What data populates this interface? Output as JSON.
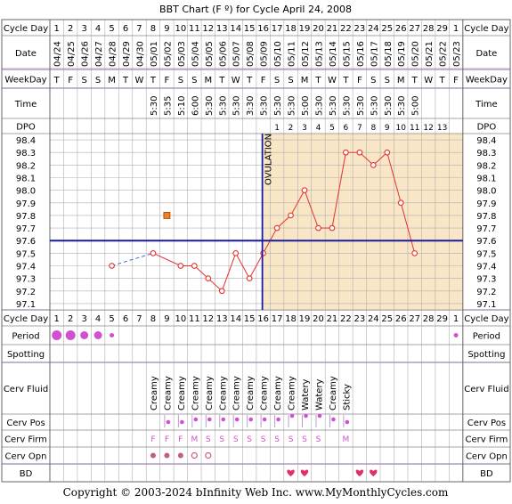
{
  "title": "BBT Chart (F º) for Cycle April 24, 2008",
  "copyright": "Copyright © 2003-2024 bInfinity Web Inc.    www.MyMonthlyCycles.com",
  "row_labels": {
    "cycle_day": "Cycle Day",
    "date": "Date",
    "weekday": "WeekDay",
    "time": "Time",
    "dpo": "DPO",
    "period": "Period",
    "spotting": "Spotting",
    "cerv_fluid": "Cerv Fluid",
    "cerv_pos": "Cerv Pos",
    "cerv_firm": "Cerv Firm",
    "cerv_opn": "Cerv Opn",
    "bd": "BD"
  },
  "ovulation_label": "OVULATION",
  "colors": {
    "background_luteal": "#f8e6c6",
    "grid": "#b0b0b0",
    "temp_line": "#e83030",
    "coverline": "#1a1aa0",
    "ovulation_line": "#1a1aa0",
    "dot_purple": "#d050d0",
    "heart": "#e0306a",
    "sep_band": "#e6d0ef"
  },
  "days": {
    "cycle_day": [
      "1",
      "2",
      "3",
      "4",
      "5",
      "6",
      "7",
      "8",
      "9",
      "10",
      "11",
      "12",
      "13",
      "14",
      "15",
      "16",
      "17",
      "18",
      "19",
      "20",
      "21",
      "22",
      "23",
      "24",
      "25",
      "26",
      "27",
      "28",
      "29",
      "1"
    ],
    "date": [
      "04/24",
      "04/25",
      "04/26",
      "04/27",
      "04/28",
      "04/29",
      "04/30",
      "05/01",
      "05/02",
      "05/03",
      "05/04",
      "05/05",
      "05/06",
      "05/07",
      "05/08",
      "05/09",
      "05/10",
      "05/11",
      "05/12",
      "05/13",
      "05/14",
      "05/15",
      "05/16",
      "05/17",
      "05/18",
      "05/19",
      "05/20",
      "05/21",
      "05/22",
      "05/23"
    ],
    "weekday": [
      "T",
      "F",
      "S",
      "S",
      "M",
      "T",
      "W",
      "T",
      "F",
      "S",
      "S",
      "M",
      "T",
      "W",
      "T",
      "F",
      "S",
      "S",
      "M",
      "T",
      "W",
      "T",
      "F",
      "S",
      "S",
      "M",
      "T",
      "W",
      "T",
      "F"
    ],
    "time": [
      "",
      "",
      "",
      "",
      "",
      "",
      "",
      "5:30",
      "5:35",
      "5:10",
      "6:00",
      "5:30",
      "5:30",
      "5:30",
      "3:30",
      "5:30",
      "5:30",
      "5:30",
      "5:00",
      "5:30",
      "5:30",
      "5:30",
      "5:30",
      "5:30",
      "5:30",
      "5:30",
      "5:00",
      "",
      "",
      ""
    ],
    "dpo": [
      "",
      "",
      "",
      "",
      "",
      "",
      "",
      "",
      "",
      "",
      "",
      "",
      "",
      "",
      "",
      "",
      "1",
      "2",
      "3",
      "4",
      "5",
      "6",
      "7",
      "8",
      "9",
      "10",
      "11",
      "12",
      "13",
      ""
    ],
    "period": [
      "heavy",
      "heavy",
      "medium",
      "medium",
      "light",
      "",
      "",
      "",
      "",
      "",
      "",
      "",
      "",
      "",
      "",
      "",
      "",
      "",
      "",
      "",
      "",
      "",
      "",
      "",
      "",
      "",
      "",
      "",
      "",
      "light"
    ],
    "cerv_fluid": [
      "",
      "",
      "",
      "",
      "",
      "",
      "",
      "Creamy",
      "Creamy",
      "Creamy",
      "Creamy",
      "Creamy",
      "Creamy",
      "Creamy",
      "Creamy",
      "Creamy",
      "Creamy",
      "Creamy",
      "Watery",
      "Watery",
      "Creamy",
      "Sticky",
      "",
      "",
      "",
      "",
      "",
      "",
      "",
      ""
    ],
    "cerv_pos": [
      "",
      "",
      "",
      "",
      "",
      "",
      "",
      "",
      "low",
      "low",
      "mid",
      "mid",
      "mid",
      "mid",
      "mid",
      "mid",
      "mid",
      "high",
      "high",
      "high",
      "mid",
      "low",
      "",
      "",
      "",
      "",
      "",
      "",
      "",
      ""
    ],
    "cerv_firm": [
      "",
      "",
      "",
      "",
      "",
      "",
      "",
      "F",
      "F",
      "F",
      "M",
      "S",
      "S",
      "S",
      "S",
      "S",
      "S",
      "S",
      "S",
      "S",
      "",
      "M",
      "",
      "",
      "",
      "",
      "",
      "",
      "",
      ""
    ],
    "cerv_opn": [
      "",
      "",
      "",
      "",
      "",
      "",
      "",
      "closed",
      "closed",
      "closed",
      "open",
      "open",
      "",
      "",
      "",
      "",
      "",
      "",
      "",
      "",
      "",
      "",
      "",
      "",
      "",
      "",
      "",
      "",
      "",
      ""
    ],
    "bd": [
      "",
      "",
      "",
      "",
      "",
      "",
      "",
      "",
      "",
      "",
      "",
      "",
      "",
      "",
      "",
      "",
      "",
      "heart",
      "heart",
      "",
      "",
      "",
      "heart",
      "heart",
      "",
      "",
      "",
      "",
      "",
      ""
    ]
  },
  "chart_data": {
    "type": "line",
    "title": "BBT Chart (F º) for Cycle April 24, 2008",
    "x": [
      1,
      2,
      3,
      4,
      5,
      6,
      7,
      8,
      9,
      10,
      11,
      12,
      13,
      14,
      15,
      16,
      17,
      18,
      19,
      20,
      21,
      22,
      23,
      24,
      25,
      26,
      27,
      28,
      29,
      30
    ],
    "y_ticks": [
      98.4,
      98.3,
      98.2,
      98.1,
      98.0,
      97.9,
      97.8,
      97.7,
      97.6,
      97.5,
      97.4,
      97.3,
      97.2,
      97.1
    ],
    "ylim": [
      97.05,
      98.45
    ],
    "series": [
      {
        "values": [
          null,
          null,
          null,
          null,
          97.4,
          null,
          null,
          97.5,
          null,
          97.4,
          97.4,
          97.3,
          97.2,
          97.5,
          97.3,
          97.5,
          97.7,
          97.8,
          98.0,
          97.7,
          97.7,
          98.3,
          98.3,
          98.2,
          98.3,
          97.9,
          97.5,
          null,
          null,
          null
        ]
      }
    ],
    "dashed_segment": {
      "from_day": 5,
      "to_day": 8
    },
    "outlier": {
      "day": 9,
      "value": 97.8
    },
    "coverline": 97.6,
    "ovulation_day": 16,
    "grid": true
  }
}
